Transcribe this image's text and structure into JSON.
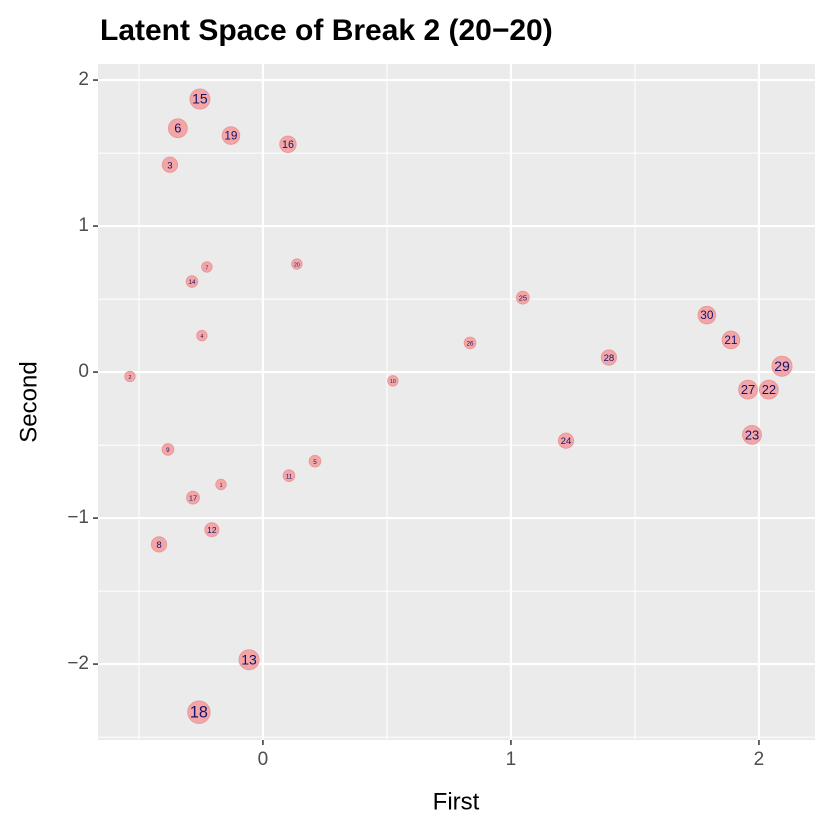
{
  "chart_data": {
    "type": "scatter",
    "title": "Latent Space of Break 2 (20−20)",
    "x_label": "First",
    "y_label": "Second",
    "labels": [
      "15",
      "6",
      "19",
      "16",
      "3",
      "7",
      "20",
      "14",
      "4",
      "2",
      "26",
      "25",
      "10",
      "24",
      "28",
      "30",
      "21",
      "29",
      "27",
      "22",
      "23",
      "9",
      "1",
      "17",
      "11",
      "5",
      "12",
      "8",
      "13",
      "18"
    ],
    "x": [
      -0.254,
      -0.343,
      -0.129,
      0.101,
      -0.375,
      -0.226,
      0.137,
      -0.286,
      -0.246,
      -0.536,
      0.835,
      1.048,
      0.524,
      1.222,
      1.395,
      1.79,
      1.887,
      2.093,
      1.956,
      2.04,
      1.972,
      -0.383,
      -0.169,
      -0.282,
      0.105,
      0.21,
      -0.206,
      -0.419,
      -0.056,
      -0.258
    ],
    "y": [
      1.87,
      1.67,
      1.62,
      1.56,
      1.42,
      0.72,
      0.74,
      0.62,
      0.25,
      -0.03,
      0.2,
      0.51,
      -0.06,
      -0.47,
      0.1,
      0.39,
      0.22,
      0.04,
      -0.12,
      -0.12,
      -0.43,
      -0.53,
      -0.77,
      -0.86,
      -0.71,
      -0.61,
      -1.08,
      -1.18,
      -1.97,
      -2.33
    ],
    "sizes": [
      5,
      4.5,
      4,
      3.5,
      3,
      1,
      1,
      1.5,
      1,
      1,
      1.5,
      2,
      1,
      3,
      3,
      4,
      4,
      5,
      4.5,
      4.5,
      4.5,
      1.5,
      1,
      2,
      1.5,
      1.5,
      2.5,
      3,
      5,
      6
    ],
    "color": "#f4a6a6",
    "label_color": "#14146e",
    "xlim": [
      -0.665,
      2.226
    ],
    "ylim": [
      -2.52,
      2.11
    ],
    "xticks": [
      0,
      1,
      2
    ],
    "yticks": [
      {
        "value": -2,
        "label": "−2"
      },
      {
        "value": -1,
        "label": "−1"
      },
      0,
      1,
      2
    ],
    "grid": true
  }
}
